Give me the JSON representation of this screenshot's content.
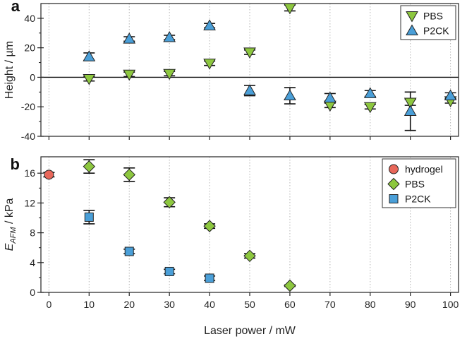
{
  "colors": {
    "pbs": "#8dc73f",
    "p2ck": "#4a9fd8",
    "hydrogel": "#e8675a",
    "errorbar": "#111111",
    "grid": "#b5b5b5"
  },
  "xaxis": {
    "label": "Laser power / mW",
    "ticks": [
      0,
      10,
      20,
      30,
      40,
      50,
      60,
      70,
      80,
      90,
      100
    ],
    "xlim": [
      -2,
      102
    ]
  },
  "chart_data": [
    {
      "panel": "a",
      "type": "scatter",
      "ylabel": "Height / µm",
      "ylim": [
        -40,
        50
      ],
      "yticks": [
        -40,
        -20,
        0,
        20,
        40
      ],
      "grid": "vertical dotted",
      "zero_line": true,
      "legend_position": "top-right",
      "series": [
        {
          "name": "PBS",
          "marker": "triangle-down",
          "color": "#8dc73f",
          "points": [
            {
              "x": 10,
              "y": -1,
              "err": 1.5
            },
            {
              "x": 20,
              "y": 2,
              "err": 1.5
            },
            {
              "x": 30,
              "y": 2.5,
              "err": 1.5
            },
            {
              "x": 40,
              "y": 9.5,
              "err": 1.5
            },
            {
              "x": 50,
              "y": 17,
              "err": 1.5
            },
            {
              "x": 60,
              "y": 47,
              "err": 2
            },
            {
              "x": 70,
              "y": -19,
              "err": 1.5
            },
            {
              "x": 80,
              "y": -20,
              "err": 1.5
            },
            {
              "x": 90,
              "y": -17,
              "err": 2
            },
            {
              "x": 100,
              "y": -16,
              "err": 1.5
            }
          ]
        },
        {
          "name": "P2CK",
          "marker": "triangle-up",
          "color": "#4a9fd8",
          "points": [
            {
              "x": 10,
              "y": 14,
              "err": 2.5
            },
            {
              "x": 20,
              "y": 26,
              "err": 1.5
            },
            {
              "x": 30,
              "y": 27,
              "err": 1.5
            },
            {
              "x": 40,
              "y": 35,
              "err": 1.5
            },
            {
              "x": 50,
              "y": -9,
              "err": 3.5
            },
            {
              "x": 60,
              "y": -12.5,
              "err": 5.5
            },
            {
              "x": 70,
              "y": -14,
              "err": 3
            },
            {
              "x": 80,
              "y": -11,
              "err": 2
            },
            {
              "x": 90,
              "y": -23,
              "err": 13
            },
            {
              "x": 100,
              "y": -12.5,
              "err": 2
            }
          ]
        }
      ]
    },
    {
      "panel": "b",
      "type": "scatter",
      "ylabel": "E_AFM / kPa",
      "ylabel_main": "E",
      "ylabel_sub": "AFM",
      "ylabel_unit": " / kPa",
      "ylim": [
        0,
        18.2
      ],
      "yticks": [
        0,
        4,
        8,
        12,
        16
      ],
      "grid": "vertical dotted",
      "legend_position": "top-right",
      "series": [
        {
          "name": "hydrogel",
          "marker": "circle",
          "color": "#e8675a",
          "points": [
            {
              "x": 0,
              "y": 15.8,
              "err": 0.3
            }
          ]
        },
        {
          "name": "PBS",
          "marker": "diamond",
          "color": "#8dc73f",
          "points": [
            {
              "x": 10,
              "y": 16.9,
              "err": 0.9
            },
            {
              "x": 20,
              "y": 15.8,
              "err": 0.9
            },
            {
              "x": 30,
              "y": 12.1,
              "err": 0.6
            },
            {
              "x": 40,
              "y": 8.9,
              "err": 0.3
            },
            {
              "x": 50,
              "y": 4.9,
              "err": 0.3
            },
            {
              "x": 60,
              "y": 0.9,
              "err": 0.1
            }
          ]
        },
        {
          "name": "P2CK",
          "marker": "square",
          "color": "#4a9fd8",
          "points": [
            {
              "x": 10,
              "y": 10.1,
              "err": 0.9
            },
            {
              "x": 20,
              "y": 5.5,
              "err": 0.3
            },
            {
              "x": 30,
              "y": 2.8,
              "err": 0.3
            },
            {
              "x": 40,
              "y": 1.9,
              "err": 0.3
            }
          ]
        }
      ]
    }
  ]
}
